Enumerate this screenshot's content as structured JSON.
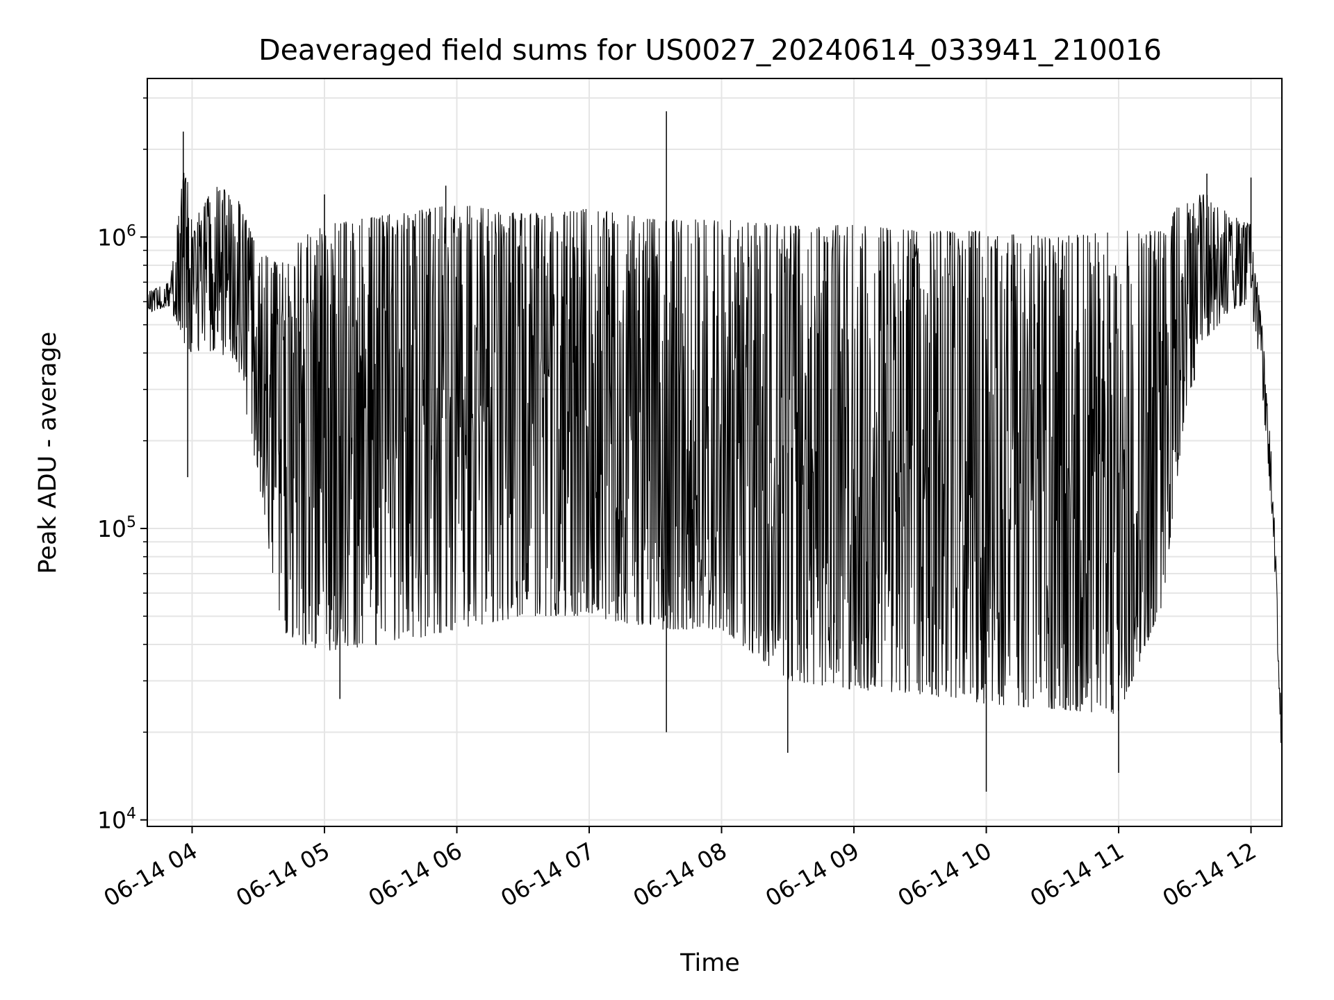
{
  "chart_data": {
    "type": "line",
    "title": "Deaveraged field sums for US0027_20240614_033941_210016",
    "xlabel": "Time",
    "ylabel": "Peak ADU - average",
    "xscale": "time",
    "yscale": "log",
    "xlim": [
      "2024-06-14 03:39:41",
      "2024-06-14 12:14:00"
    ],
    "ylim": [
      9500,
      3500000
    ],
    "grid": true,
    "line_color": "#000000",
    "grid_color": "#e5e5e5",
    "x_ticks": [
      {
        "value": "2024-06-14 04:00",
        "label": "06-14 04"
      },
      {
        "value": "2024-06-14 05:00",
        "label": "06-14 05"
      },
      {
        "value": "2024-06-14 06:00",
        "label": "06-14 06"
      },
      {
        "value": "2024-06-14 07:00",
        "label": "06-14 07"
      },
      {
        "value": "2024-06-14 08:00",
        "label": "06-14 08"
      },
      {
        "value": "2024-06-14 09:00",
        "label": "06-14 09"
      },
      {
        "value": "2024-06-14 10:00",
        "label": "06-14 10"
      },
      {
        "value": "2024-06-14 11:00",
        "label": "06-14 11"
      },
      {
        "value": "2024-06-14 12:00",
        "label": "06-14 12"
      }
    ],
    "y_ticks": [
      {
        "value": 10000,
        "base": "10",
        "exp": "4"
      },
      {
        "value": 100000,
        "base": "10",
        "exp": "5"
      },
      {
        "value": 1000000,
        "base": "10",
        "exp": "6"
      }
    ],
    "series": [
      {
        "envelope": {
          "time": [
            "2024-06-14 03:40",
            "2024-06-14 03:50",
            "2024-06-14 03:57",
            "2024-06-14 04:00",
            "2024-06-14 04:10",
            "2024-06-14 04:20",
            "2024-06-14 04:30",
            "2024-06-14 04:40",
            "2024-06-14 04:50",
            "2024-06-14 05:00",
            "2024-06-14 05:30",
            "2024-06-14 06:00",
            "2024-06-14 06:30",
            "2024-06-14 07:00",
            "2024-06-14 07:30",
            "2024-06-14 08:00",
            "2024-06-14 08:30",
            "2024-06-14 09:00",
            "2024-06-14 09:30",
            "2024-06-14 10:00",
            "2024-06-14 10:30",
            "2024-06-14 11:00",
            "2024-06-14 11:20",
            "2024-06-14 11:30",
            "2024-06-14 11:40",
            "2024-06-14 11:50",
            "2024-06-14 12:00",
            "2024-06-14 12:05",
            "2024-06-14 12:10",
            "2024-06-14 12:14"
          ],
          "upper": [
            650000,
            700000,
            1900000,
            1100000,
            1500000,
            1400000,
            900000,
            800000,
            1000000,
            1100000,
            1200000,
            1300000,
            1200000,
            1250000,
            1150000,
            1150000,
            1100000,
            1100000,
            1050000,
            1050000,
            1000000,
            1050000,
            1050000,
            1400000,
            1400000,
            1200000,
            1100000,
            500000,
            150000,
            20000
          ],
          "lower": [
            550000,
            580000,
            420000,
            400000,
            400000,
            380000,
            150000,
            45000,
            40000,
            38000,
            40000,
            45000,
            50000,
            50000,
            45000,
            45000,
            30000,
            28000,
            27000,
            25000,
            24000,
            23000,
            55000,
            250000,
            450000,
            550000,
            600000,
            300000,
            100000,
            15000
          ]
        },
        "points": [
          {
            "time": "2024-06-14 03:56",
            "value": 2300000
          },
          {
            "time": "2024-06-14 03:58",
            "value": 150000
          },
          {
            "time": "2024-06-14 05:00",
            "value": 1400000
          },
          {
            "time": "2024-06-14 05:07",
            "value": 26000
          },
          {
            "time": "2024-06-14 05:55",
            "value": 1500000
          },
          {
            "time": "2024-06-14 07:35",
            "value": 2700000
          },
          {
            "time": "2024-06-14 07:35",
            "value": 20000
          },
          {
            "time": "2024-06-14 08:30",
            "value": 17000
          },
          {
            "time": "2024-06-14 10:00",
            "value": 12500
          },
          {
            "time": "2024-06-14 11:00",
            "value": 14500
          },
          {
            "time": "2024-06-14 11:40",
            "value": 1650000
          },
          {
            "time": "2024-06-14 12:00",
            "value": 1600000
          }
        ]
      }
    ]
  }
}
